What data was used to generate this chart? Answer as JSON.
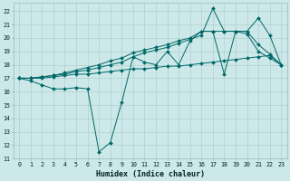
{
  "xlabel": "Humidex (Indice chaleur)",
  "background_color": "#cde8e8",
  "grid_color": "#b0d0d0",
  "line_color": "#006868",
  "xlim": [
    -0.5,
    23.5
  ],
  "ylim": [
    11,
    22.6
  ],
  "xticks": [
    0,
    1,
    2,
    3,
    4,
    5,
    6,
    7,
    8,
    9,
    10,
    11,
    12,
    13,
    14,
    15,
    16,
    17,
    18,
    19,
    20,
    21,
    22,
    23
  ],
  "yticks": [
    11,
    12,
    13,
    14,
    15,
    16,
    17,
    18,
    19,
    20,
    21,
    22
  ],
  "series": [
    [
      17.0,
      16.8,
      16.5,
      16.2,
      16.2,
      16.3,
      16.2,
      11.5,
      12.2,
      15.2,
      18.6,
      18.2,
      18.0,
      19.0,
      18.0,
      19.8,
      20.5,
      20.5,
      17.3,
      20.5,
      20.3,
      19.0,
      18.5,
      18.0
    ],
    [
      17.0,
      17.0,
      17.0,
      17.1,
      17.2,
      17.3,
      17.3,
      17.4,
      17.5,
      17.6,
      17.7,
      17.7,
      17.8,
      17.9,
      17.9,
      18.0,
      18.1,
      18.2,
      18.3,
      18.4,
      18.5,
      18.6,
      18.7,
      18.0
    ],
    [
      17.0,
      17.0,
      17.1,
      17.2,
      17.3,
      17.5,
      17.6,
      17.8,
      18.0,
      18.2,
      18.6,
      18.9,
      19.1,
      19.3,
      19.6,
      19.9,
      20.2,
      22.2,
      20.5,
      20.5,
      20.5,
      21.5,
      20.2,
      18.0
    ],
    [
      17.0,
      17.0,
      17.1,
      17.2,
      17.4,
      17.6,
      17.8,
      18.0,
      18.3,
      18.5,
      18.9,
      19.1,
      19.3,
      19.5,
      19.8,
      20.0,
      20.5,
      20.5,
      20.5,
      20.5,
      20.5,
      19.5,
      18.8,
      18.0
    ]
  ]
}
